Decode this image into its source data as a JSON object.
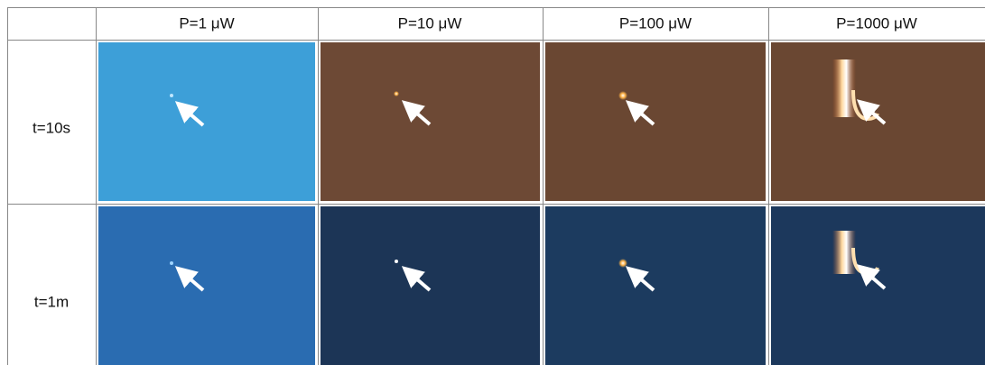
{
  "table": {
    "header": [
      "P=1 μW",
      "P=10 μW",
      "P=100 μW",
      "P=1000 μW"
    ],
    "rows": [
      {
        "label": "t=10s"
      },
      {
        "label": "t=1m"
      }
    ]
  }
}
